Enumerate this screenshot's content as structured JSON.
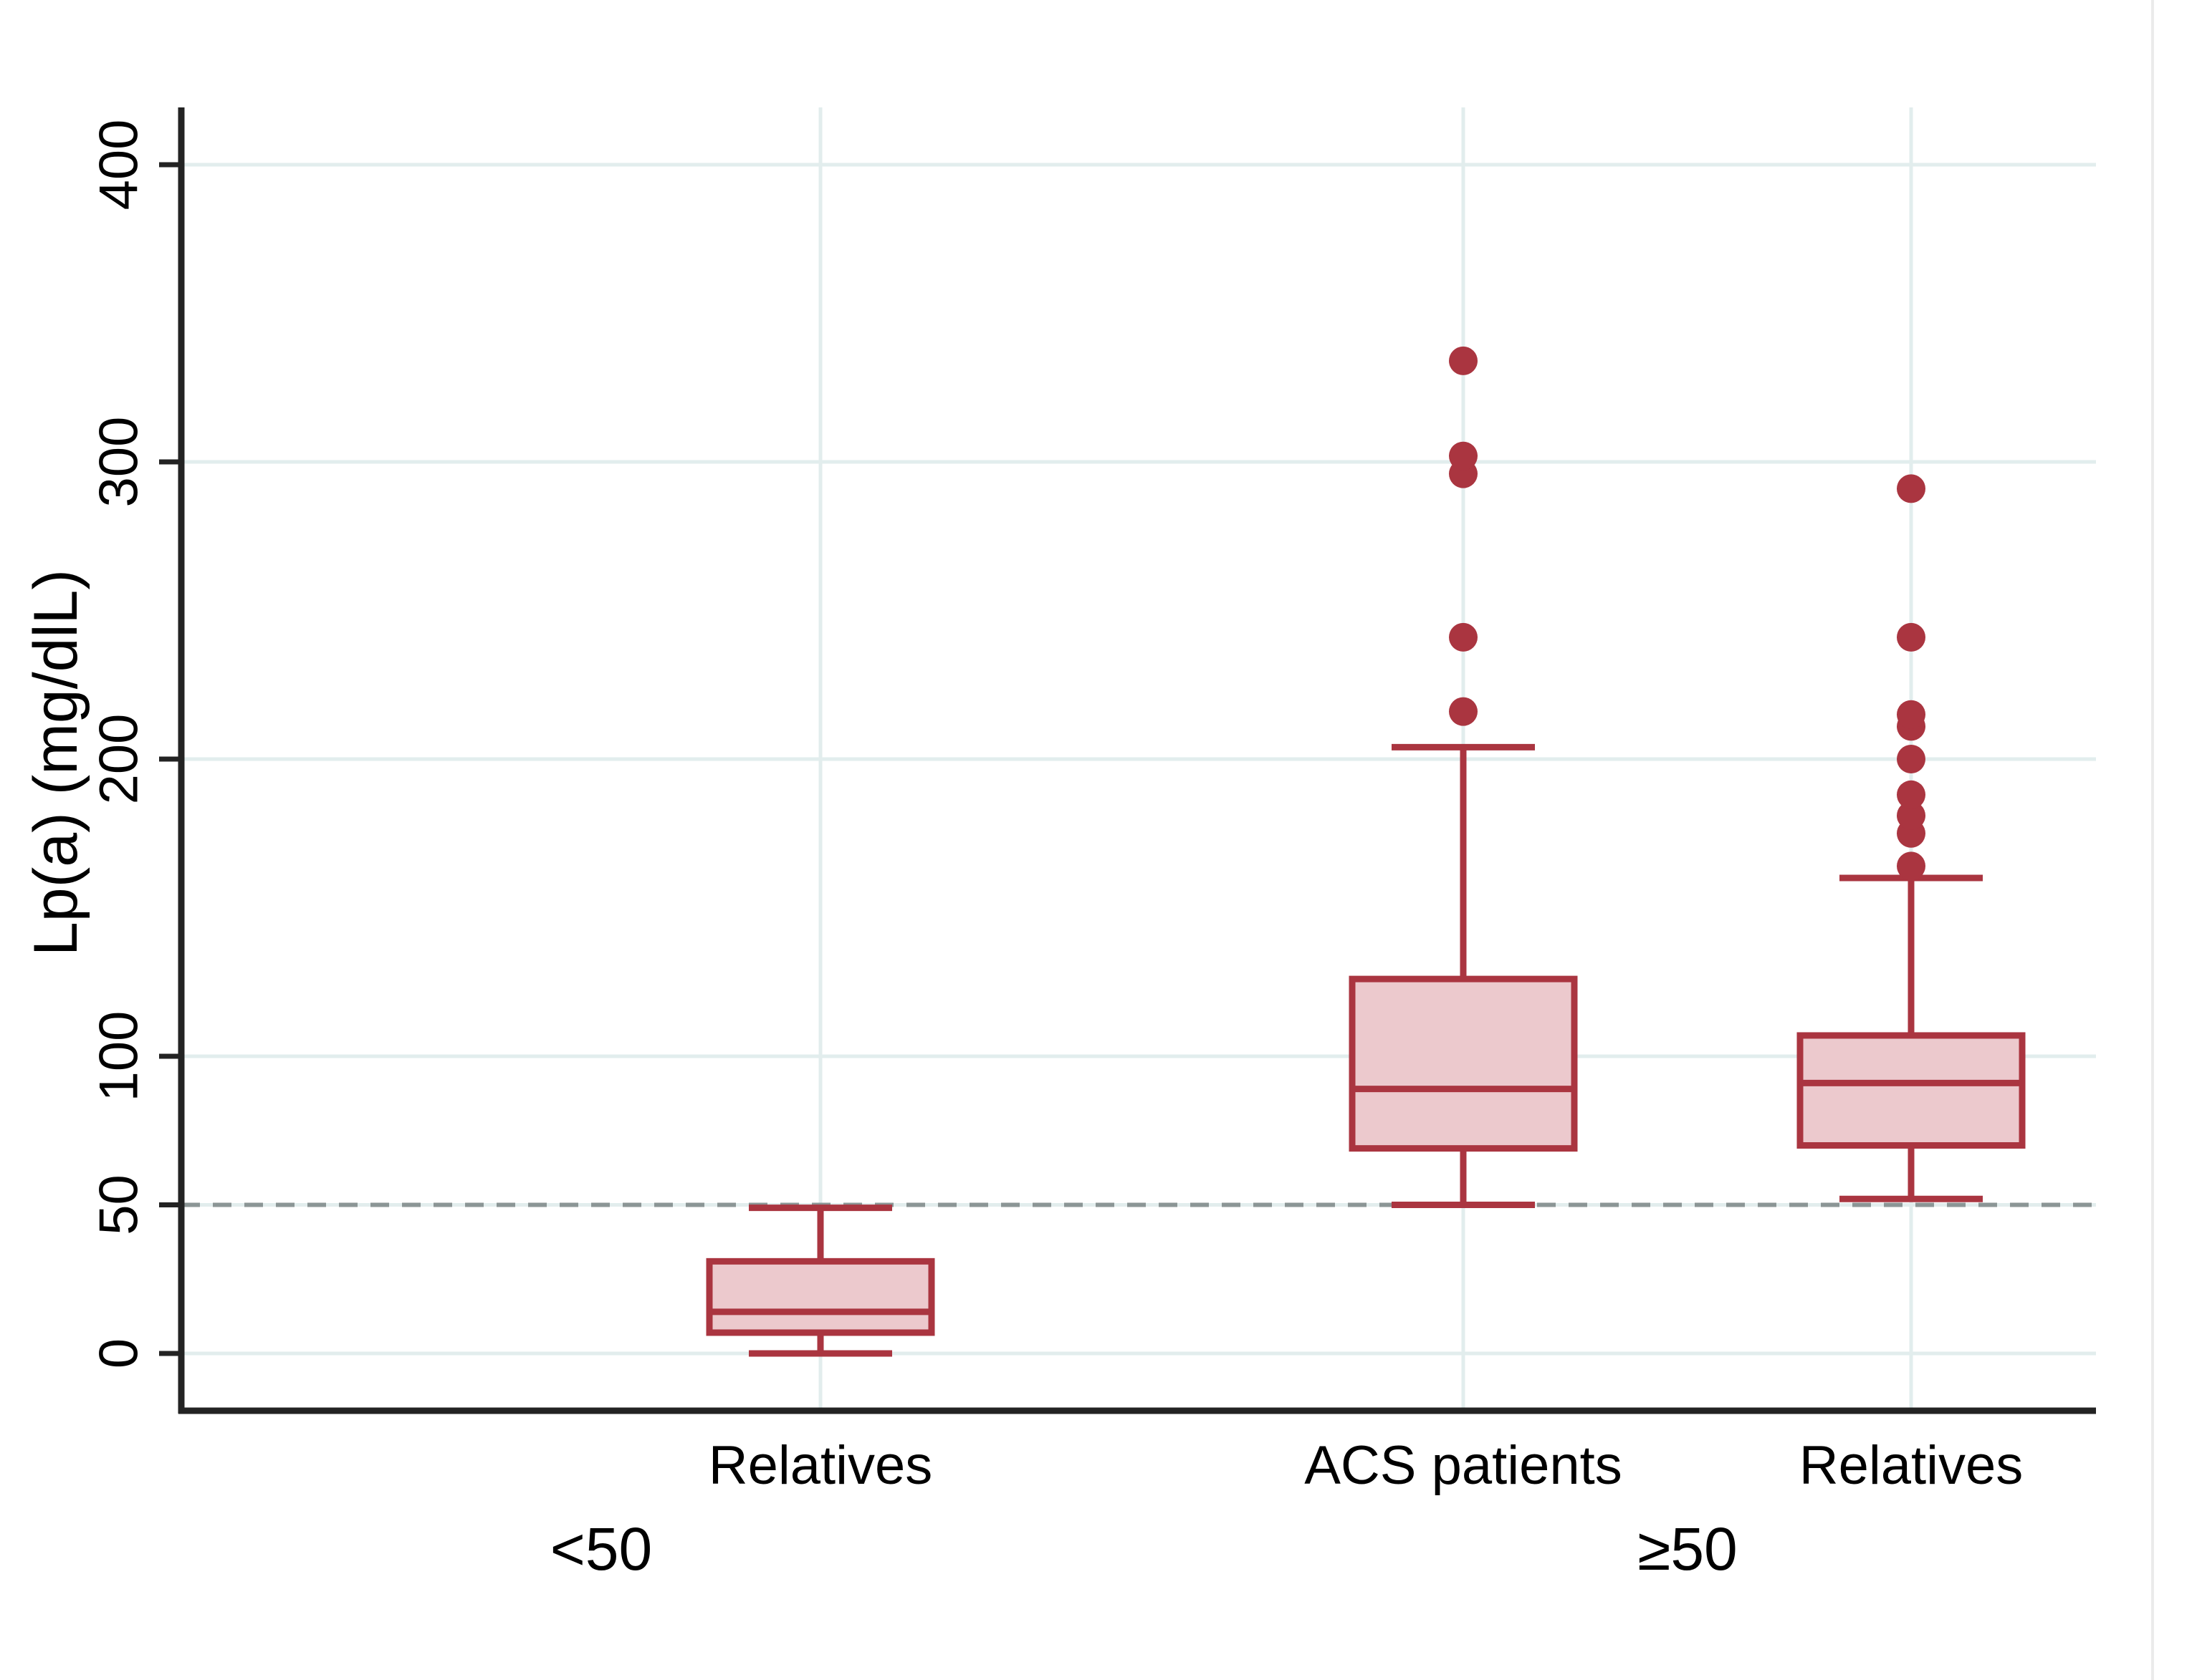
{
  "figure": {
    "background": "#ffffff"
  },
  "chart_data": {
    "type": "box",
    "title": "",
    "xlabel": "",
    "ylabel": "Lp(a) (mg/dlL)",
    "y_ticks": [
      0,
      50,
      100,
      200,
      300,
      400
    ],
    "ylim": [
      -19,
      419
    ],
    "grid": true,
    "legend": "none",
    "reference_line": {
      "y": 50,
      "style": "dash"
    },
    "groups": [
      {
        "label": "<50",
        "boxes": [
          {
            "category": "Relatives",
            "min": 0,
            "q1": 7,
            "median": 14,
            "q3": 31,
            "max": 49,
            "outliers": []
          }
        ]
      },
      {
        "label": "≥50",
        "boxes": [
          {
            "category": "ACS patients",
            "min": 50,
            "q1": 69,
            "median": 89,
            "q3": 126,
            "max": 204,
            "outliers": [
              216,
              241,
              296,
              302,
              334
            ]
          },
          {
            "category": "Relatives",
            "min": 52,
            "q1": 70,
            "median": 91,
            "q3": 107,
            "max": 160,
            "outliers": [
              164,
              175,
              181,
              188,
              200,
              211,
              215,
              241,
              291
            ]
          }
        ]
      }
    ],
    "colors": {
      "box_stroke": "#aa3540",
      "box_fill": "#ecc9cd",
      "outlier": "#aa3540",
      "gridline": "#e2eded",
      "reference_line": "#8c9696",
      "axis": "#232323",
      "frame": "#ebebeb",
      "text": "#000000"
    }
  }
}
